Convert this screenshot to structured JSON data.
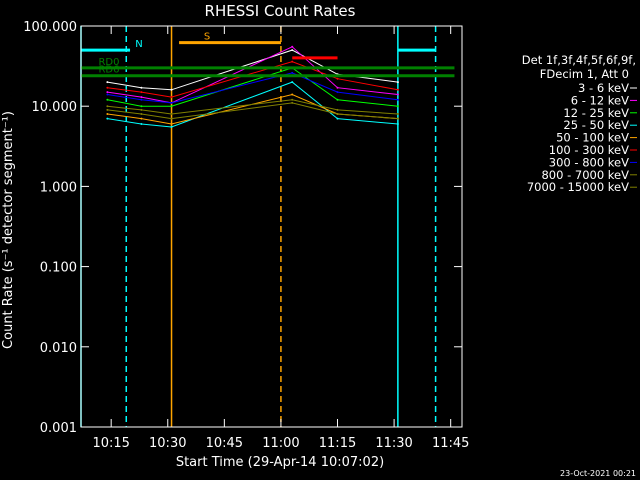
{
  "chart_data": {
    "type": "line",
    "title": "RHESSI Count Rates",
    "xlabel": "Start Time (29-Apr-14 10:07:02)",
    "ylabel": "Count Rate (s⁻¹ detector segment⁻¹)",
    "y_scale": "log",
    "ylim": [
      0.001,
      100
    ],
    "xlim": [
      "10:07",
      "11:48"
    ],
    "x_tick_labels": [
      "10:15",
      "10:30",
      "10:45",
      "11:00",
      "11:15",
      "11:30",
      "11:45"
    ],
    "y_tick_labels": [
      "0.001",
      "0.010",
      "0.100",
      "1.000",
      "10.000",
      "100.000"
    ],
    "grid": false,
    "legend_header": [
      "Det 1f,3f,4f,5f,6f,9f,",
      "FDecim 1, Att 0"
    ],
    "legend_position": "right",
    "series": [
      {
        "name": "3 - 6 keV",
        "color": "#ffffff",
        "t": [
          "10:14",
          "10:23",
          "10:31",
          "11:03",
          "11:15",
          "11:31"
        ],
        "values": [
          20,
          17,
          16,
          50,
          25,
          20
        ]
      },
      {
        "name": "6 - 12 keV",
        "color": "#ff00ff",
        "t": [
          "10:14",
          "10:23",
          "10:31",
          "11:03",
          "11:15",
          "11:31"
        ],
        "values": [
          15,
          13,
          11,
          55,
          17,
          14
        ]
      },
      {
        "name": "12 - 25 keV",
        "color": "#00ff00",
        "t": [
          "10:14",
          "10:23",
          "10:31",
          "11:03",
          "11:15",
          "11:31"
        ],
        "values": [
          12,
          10,
          10,
          30,
          12,
          10
        ]
      },
      {
        "name": "25 - 50 keV",
        "color": "#00ffff",
        "t": [
          "10:14",
          "10:23",
          "10:31",
          "11:03",
          "11:15",
          "11:31"
        ],
        "values": [
          7,
          6,
          5.5,
          20,
          7,
          6
        ]
      },
      {
        "name": "50 - 100 keV",
        "color": "#ffa500",
        "t": [
          "10:14",
          "10:23",
          "10:31",
          "11:03",
          "11:15",
          "11:31"
        ],
        "values": [
          8,
          7,
          6,
          14,
          8,
          7
        ]
      },
      {
        "name": "100 - 300 keV",
        "color": "#ff0000",
        "t": [
          "10:14",
          "10:23",
          "10:31",
          "11:03",
          "11:15",
          "11:31"
        ],
        "values": [
          17,
          15,
          13,
          36,
          22,
          16
        ]
      },
      {
        "name": "300 - 800 keV",
        "color": "#0000ff",
        "t": [
          "10:14",
          "10:23",
          "10:31",
          "11:03",
          "11:15",
          "11:31"
        ],
        "values": [
          14,
          12,
          11,
          26,
          15,
          12
        ]
      },
      {
        "name": "800 - 7000 keV",
        "color": "#808000",
        "t": [
          "10:14",
          "10:23",
          "10:31",
          "11:03",
          "11:15",
          "11:31"
        ],
        "values": [
          10,
          9,
          8,
          12,
          9,
          8
        ]
      },
      {
        "name": "7000 - 15000 keV",
        "color": "#808000",
        "t": [
          "10:14",
          "10:23",
          "10:31",
          "11:03",
          "11:15",
          "11:31"
        ],
        "values": [
          9,
          8,
          7,
          11,
          8,
          7
        ]
      }
    ],
    "flags": [
      {
        "label": "N",
        "color": "#00ffff",
        "t_start": "10:07",
        "t_end": "10:20",
        "value": 50
      },
      {
        "label": "",
        "color": "#00ffff",
        "t_start": "11:31",
        "t_end": "11:41",
        "value": 50
      },
      {
        "label": "S",
        "color": "#ffa500",
        "t_start": "10:33",
        "t_end": "11:00",
        "value": 62
      },
      {
        "label": "",
        "color": "#ff0000",
        "t_start": "11:03",
        "t_end": "11:15",
        "value": 40
      },
      {
        "label": "RD0",
        "color": "#008000",
        "t_start": "10:07",
        "t_end": "11:46",
        "value": 30
      },
      {
        "label": "RD6",
        "color": "#008000",
        "t_start": "10:07",
        "t_end": "11:46",
        "value": 24
      }
    ],
    "vlines": [
      {
        "t": "10:07",
        "color": "#00ffff",
        "style": "solid"
      },
      {
        "t": "10:19",
        "color": "#00ffff",
        "style": "dashed"
      },
      {
        "t": "10:31",
        "color": "#ffa500",
        "style": "solid"
      },
      {
        "t": "11:00",
        "color": "#ffa500",
        "style": "dashed"
      },
      {
        "t": "11:31",
        "color": "#00ffff",
        "style": "solid"
      },
      {
        "t": "11:41",
        "color": "#00ffff",
        "style": "dashed"
      }
    ]
  },
  "footer": {
    "date_stamp": "23-Oct-2021 00:21"
  }
}
